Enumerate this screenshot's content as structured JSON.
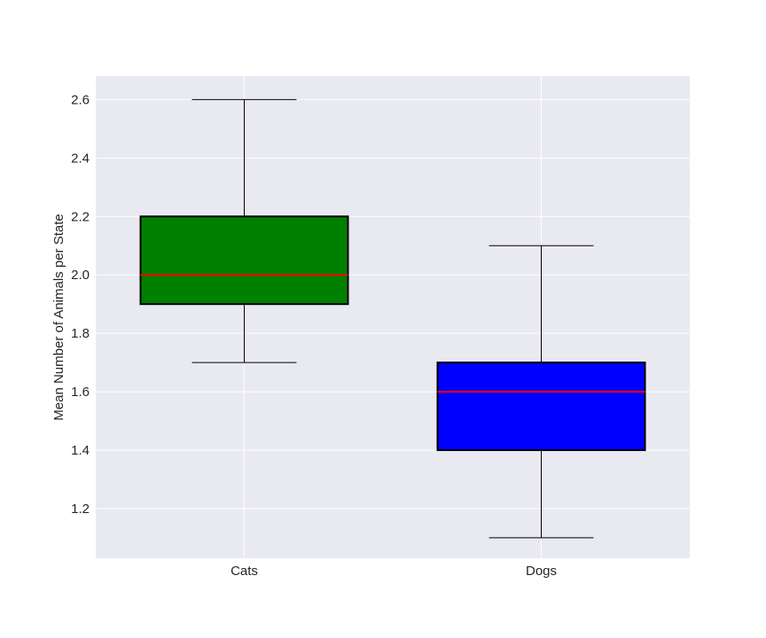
{
  "chart_data": {
    "type": "box",
    "title": "",
    "xlabel": "",
    "ylabel": "Mean Number of Animals per State",
    "ylim": [
      1.03,
      2.68
    ],
    "yticks": [
      1.2,
      1.4,
      1.6,
      1.8,
      2.0,
      2.2,
      2.4,
      2.6
    ],
    "ytick_labels": [
      "1.2",
      "1.4",
      "1.6",
      "1.8",
      "2.0",
      "2.2",
      "2.4",
      "2.6"
    ],
    "grid": true,
    "background": "#e9e9f1",
    "median_color": "#ff0000",
    "categories": [
      "Cats",
      "Dogs"
    ],
    "boxes": [
      {
        "name": "Cats",
        "whisker_low": 1.7,
        "q1": 1.9,
        "median": 2.0,
        "q3": 2.2,
        "whisker_high": 2.6,
        "color": "#008000"
      },
      {
        "name": "Dogs",
        "whisker_low": 1.1,
        "q1": 1.4,
        "median": 1.6,
        "q3": 1.7,
        "whisker_high": 2.1,
        "color": "#0000ff"
      }
    ]
  }
}
